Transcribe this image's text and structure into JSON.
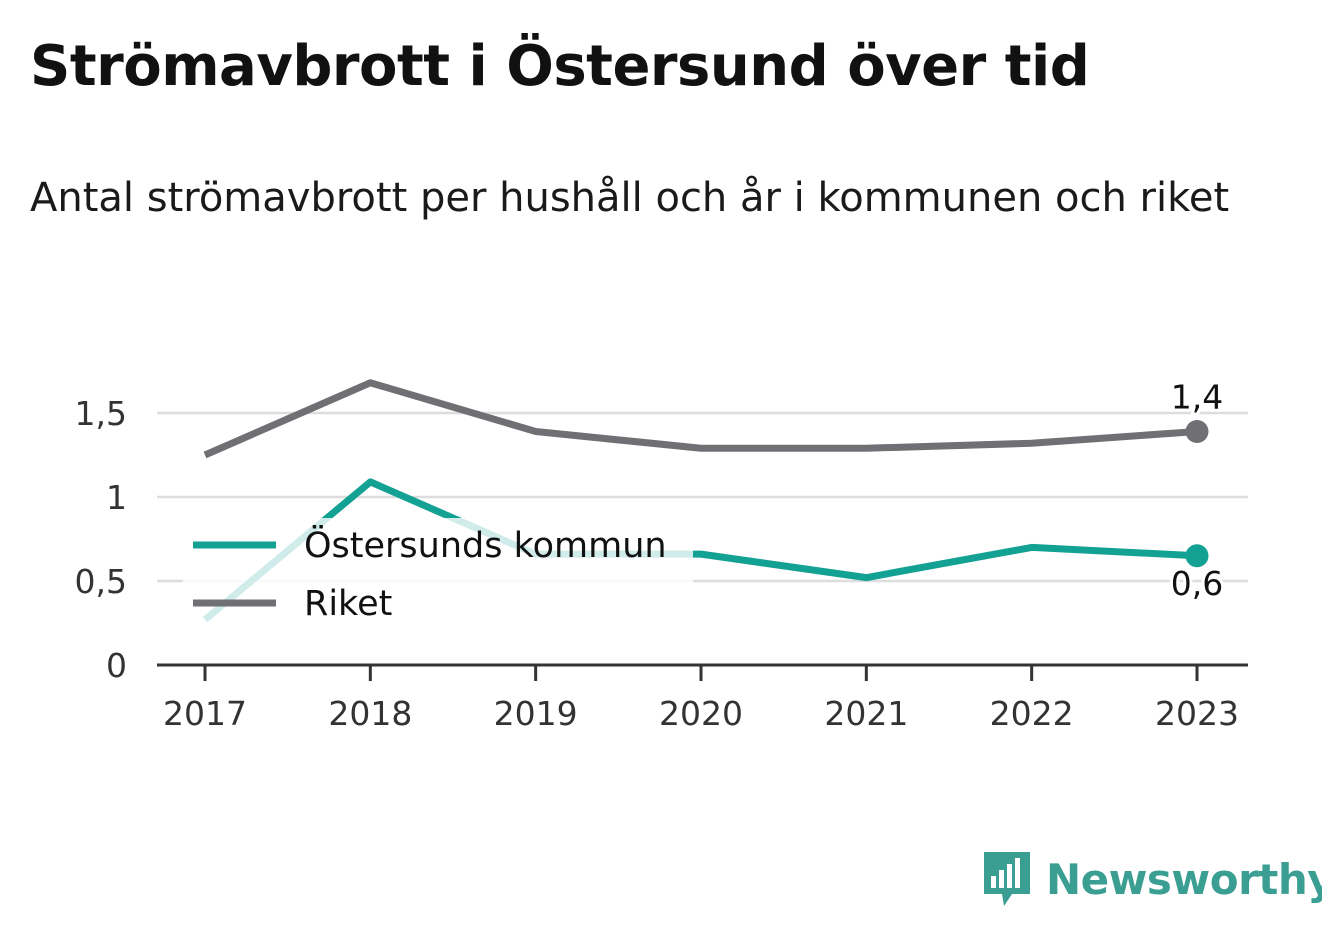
{
  "header": {
    "title": "Strömavbrott i Östersund över tid",
    "subtitle": "Antal strömavbrott per hushåll och år i kommunen och riket"
  },
  "chart_data": {
    "type": "line",
    "x": [
      2017,
      2018,
      2019,
      2020,
      2021,
      2022,
      2023
    ],
    "x_tick_labels": [
      "2017",
      "2018",
      "2019",
      "2020",
      "2021",
      "2022",
      "2023"
    ],
    "ylim": [
      0,
      1.75
    ],
    "y_ticks": [
      0,
      0.5,
      1,
      1.5
    ],
    "y_tick_labels": [
      "0",
      "0,5",
      "1",
      "1,5"
    ],
    "grid": true,
    "legend_placement": "middle-left",
    "series": [
      {
        "name": "Östersunds kommun",
        "color": "#13a194",
        "values": [
          0.27,
          1.09,
          0.66,
          0.66,
          0.52,
          0.7,
          0.65
        ],
        "end_label": "0,6"
      },
      {
        "name": "Riket",
        "color": "#707074",
        "values": [
          1.25,
          1.68,
          1.39,
          1.29,
          1.29,
          1.32,
          1.39
        ],
        "end_label": "1,4"
      }
    ]
  },
  "brand": {
    "name": "Newsworthy",
    "color": "#3a9e92",
    "icon": "bar-chart-speech-bubble-icon"
  }
}
